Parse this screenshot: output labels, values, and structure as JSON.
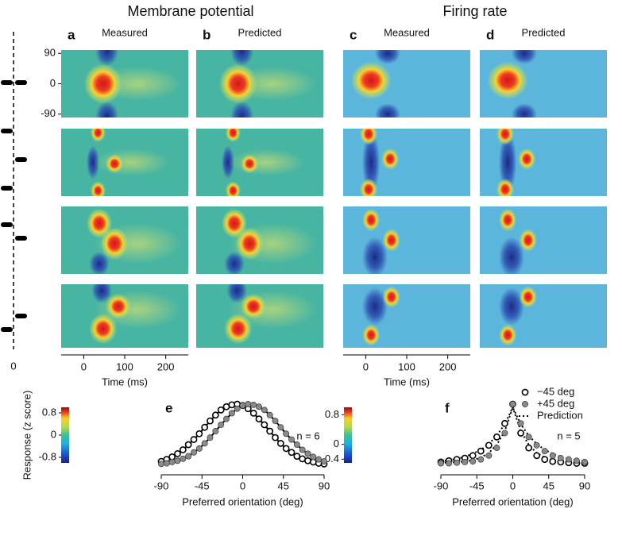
{
  "header": {
    "membrane_title": "Membrane potential",
    "firing_title": "Firing rate"
  },
  "panels": [
    {
      "letter": "a",
      "label": "Measured"
    },
    {
      "letter": "b",
      "label": "Predicted"
    },
    {
      "letter": "c",
      "label": "Measured"
    },
    {
      "letter": "d",
      "label": "Predicted"
    }
  ],
  "orientation_axis": {
    "ylim": [
      -100,
      100
    ],
    "yticks": [
      90,
      0,
      -90
    ]
  },
  "time_axis": {
    "xlabel": "Time (ms)",
    "xlim": [
      -55,
      255
    ],
    "xticks": [
      0,
      100,
      200
    ]
  },
  "stimulus_axis": {
    "xticks": [
      0
    ]
  },
  "colorbars": [
    {
      "label": "Response (z score)",
      "lim": [
        -1,
        1
      ],
      "ticks": [
        0.8,
        0,
        -0.8
      ]
    },
    {
      "lim": [
        -0.5,
        1
      ],
      "ticks": [
        0.8,
        0,
        -0.4
      ]
    }
  ],
  "chart_data": [
    {
      "type": "line",
      "letter": "e",
      "annotation": "n = 6",
      "xlabel": "Preferred orientation (deg)",
      "x": [
        -90,
        -84,
        -78,
        -72,
        -66,
        -60,
        -54,
        -48,
        -42,
        -36,
        -30,
        -24,
        -18,
        -12,
        -6,
        0,
        6,
        12,
        18,
        24,
        30,
        36,
        42,
        48,
        54,
        60,
        66,
        72,
        78,
        84,
        90
      ],
      "xlim": [
        -90,
        90
      ],
      "xticks": [
        -90,
        -45,
        0,
        45,
        90
      ],
      "ylim": [
        0,
        1.05
      ],
      "series": [
        {
          "marker": "open",
          "color": "#000000",
          "values": [
            0.11,
            0.14,
            0.18,
            0.23,
            0.29,
            0.37,
            0.45,
            0.54,
            0.64,
            0.74,
            0.83,
            0.91,
            0.96,
            0.99,
            1.0,
            0.98,
            0.93,
            0.86,
            0.77,
            0.68,
            0.58,
            0.48,
            0.39,
            0.31,
            0.25,
            0.19,
            0.15,
            0.12,
            0.1,
            0.08,
            0.07
          ]
        },
        {
          "marker": "filled",
          "color": "#8a8a8a",
          "values": [
            0.07,
            0.08,
            0.1,
            0.12,
            0.15,
            0.19,
            0.25,
            0.31,
            0.39,
            0.48,
            0.58,
            0.68,
            0.77,
            0.86,
            0.93,
            0.98,
            1.0,
            0.99,
            0.96,
            0.91,
            0.83,
            0.74,
            0.64,
            0.54,
            0.45,
            0.37,
            0.29,
            0.23,
            0.18,
            0.14,
            0.11
          ]
        }
      ]
    },
    {
      "type": "line",
      "letter": "f",
      "annotation": "n = 5",
      "xlabel": "Preferred orientation (deg)",
      "x": [
        -90,
        -80,
        -70,
        -60,
        -50,
        -40,
        -30,
        -20,
        -10,
        0,
        10,
        20,
        30,
        40,
        50,
        60,
        70,
        80,
        90
      ],
      "xlim": [
        -90,
        90
      ],
      "xticks": [
        -90,
        -45,
        0,
        45,
        90
      ],
      "ylim": [
        0,
        1.05
      ],
      "series": [
        {
          "name": "−45 deg",
          "marker": "open",
          "color": "#000000",
          "values": [
            0.1,
            0.12,
            0.14,
            0.16,
            0.2,
            0.27,
            0.36,
            0.49,
            0.7,
            1.0,
            0.55,
            0.32,
            0.2,
            0.14,
            0.11,
            0.1,
            0.09,
            0.08,
            0.08
          ]
        },
        {
          "name": "+45 deg",
          "marker": "filled",
          "color": "#8a8a8a",
          "values": [
            0.08,
            0.08,
            0.09,
            0.1,
            0.11,
            0.14,
            0.2,
            0.32,
            0.55,
            1.0,
            0.7,
            0.49,
            0.36,
            0.27,
            0.2,
            0.16,
            0.14,
            0.12,
            0.1
          ]
        },
        {
          "name": "Prediction",
          "marker": "dotted",
          "color": "#000000",
          "curves": [
            [
              0.11,
              0.13,
              0.15,
              0.18,
              0.23,
              0.29,
              0.38,
              0.51,
              0.69,
              0.95,
              0.58,
              0.37,
              0.24,
              0.17,
              0.13,
              0.11,
              0.1,
              0.09,
              0.09
            ],
            [
              0.09,
              0.09,
              0.1,
              0.11,
              0.13,
              0.17,
              0.24,
              0.37,
              0.58,
              0.95,
              0.69,
              0.51,
              0.38,
              0.29,
              0.23,
              0.18,
              0.15,
              0.13,
              0.11
            ]
          ]
        }
      ]
    }
  ]
}
